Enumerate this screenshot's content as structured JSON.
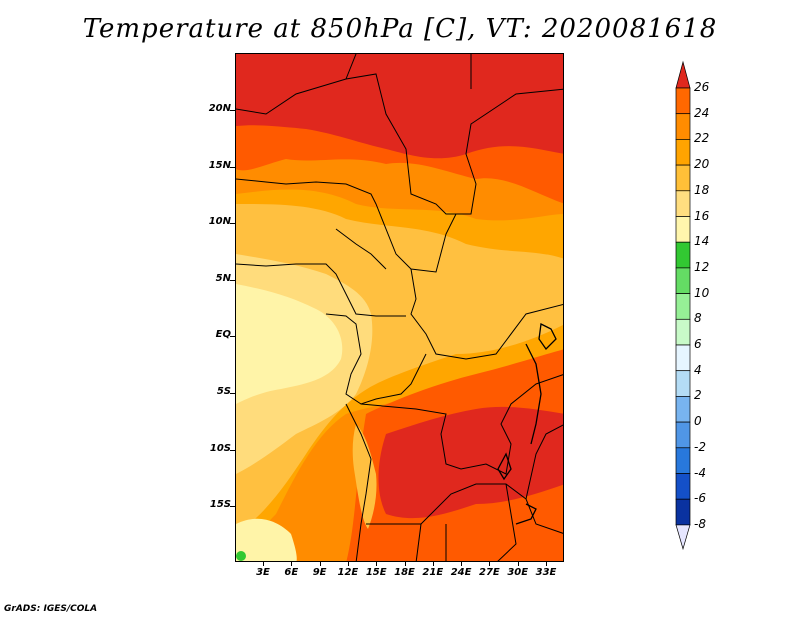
{
  "title": "Temperature at 850hPa [C], VT: 2020081618",
  "credit": "GrADS: IGES/COLA",
  "map": {
    "latitude_labels": [
      "20N",
      "15N",
      "10N",
      "5N",
      "EQ",
      "5S",
      "10S",
      "15S"
    ],
    "longitude_labels": [
      "3E",
      "6E",
      "9E",
      "12E",
      "15E",
      "18E",
      "21E",
      "24E",
      "27E",
      "30E",
      "33E"
    ]
  },
  "colorbar": {
    "labels": [
      "26",
      "24",
      "22",
      "20",
      "18",
      "16",
      "14",
      "12",
      "10",
      "8",
      "6",
      "4",
      "2",
      "0",
      "-2",
      "-4",
      "-6",
      "-8"
    ],
    "colors": [
      "#ff3c00",
      "#ff6800",
      "#ff8c00",
      "#ffa400",
      "#ffc038",
      "#ffde80",
      "#fff6ad",
      "#32c832",
      "#64dc64",
      "#96f096",
      "#c8fac8",
      "#e6f5ff",
      "#b4dcf5",
      "#78b4f0",
      "#5096e6",
      "#2878dc",
      "#1450c8",
      "#0a32a0",
      "#000064"
    ],
    "top_arrow_color": "#e0281e",
    "bottom_arrow_color": "#e6e6ff"
  },
  "field_colors": {
    "t26": "#e0281e",
    "t24": "#ff5a00",
    "t22": "#ff8c00",
    "t20": "#ffa600",
    "t18": "#ffc040",
    "t16": "#ffdc7c",
    "t14": "#fff4a8",
    "t12": "#32c832",
    "t10": "#64dc64"
  }
}
